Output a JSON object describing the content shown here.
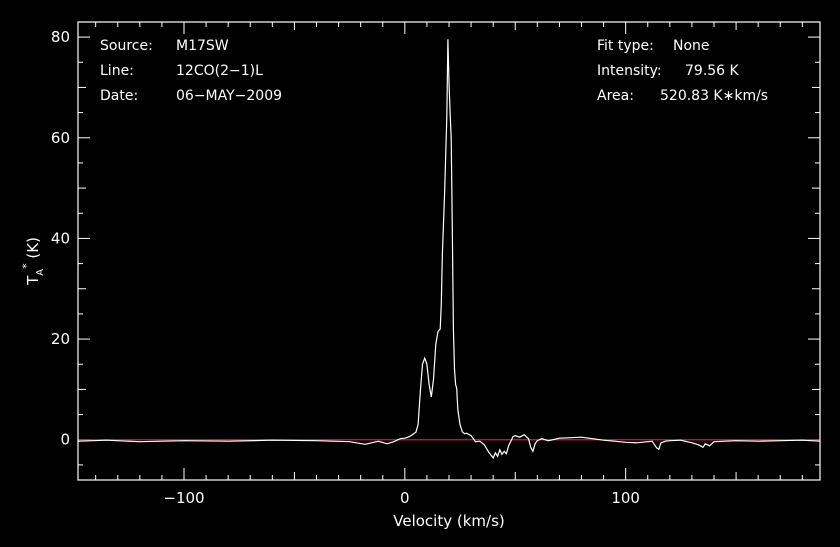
{
  "chart_data": {
    "type": "line",
    "xlabel": "Velocity (km/s)",
    "ylabel": {
      "main": "T",
      "sub": "A",
      "sup": "*",
      "unit": " (K)"
    },
    "xlim": [
      -148,
      188
    ],
    "ylim": [
      -8,
      83
    ],
    "xticks": [
      -100,
      0,
      100
    ],
    "yticks": [
      0,
      20,
      40,
      60,
      80
    ],
    "baseline": {
      "y": 0,
      "color": "#cc2222"
    },
    "line_color": "#ffffff",
    "info_left": [
      {
        "key": "Source:",
        "value": "M17SW"
      },
      {
        "key": "Line:",
        "value": "12CO(2−1)L"
      },
      {
        "key": "Date:",
        "value": "06−MAY−2009"
      }
    ],
    "info_right": [
      {
        "key": "Fit type:",
        "value": "None"
      },
      {
        "key": "Intensity:",
        "value": "79.56 K"
      },
      {
        "key": "Area:",
        "value": "520.83 K∗km/s"
      }
    ],
    "series": [
      {
        "x": [
          -148,
          -135,
          -120,
          -100,
          -80,
          -60,
          -40,
          -25,
          -18,
          -15,
          -12,
          -8,
          -5,
          -2,
          0,
          2,
          4,
          5,
          6,
          7,
          8,
          9,
          10,
          11,
          12,
          13,
          14,
          15,
          16,
          16.5,
          17,
          18,
          19,
          19.5,
          20,
          20.5,
          21,
          21.5,
          22,
          22.5,
          23,
          23.5,
          24,
          25,
          26,
          27,
          28,
          30,
          32,
          34,
          36,
          38,
          40,
          41,
          42,
          43,
          44,
          45,
          46,
          47,
          48,
          49,
          50,
          52,
          54,
          56,
          57,
          58,
          59,
          60,
          62,
          65,
          70,
          75,
          80,
          85,
          90,
          95,
          100,
          105,
          110,
          112,
          114,
          115,
          116,
          118,
          120,
          125,
          130,
          133,
          135,
          136,
          138,
          140,
          145,
          150,
          160,
          170,
          180,
          188
        ],
        "y": [
          -0.3,
          -0.1,
          -0.4,
          -0.2,
          -0.3,
          -0.1,
          -0.2,
          -0.4,
          -0.9,
          -0.6,
          -0.3,
          -0.8,
          -0.4,
          0.2,
          0.3,
          0.6,
          1.2,
          1.5,
          3.0,
          9.5,
          15.0,
          16.2,
          15.0,
          11.0,
          8.5,
          12.0,
          19.0,
          21.5,
          22.0,
          27.0,
          37.0,
          49.0,
          64.0,
          79.56,
          71.0,
          65.0,
          60.0,
          42.0,
          22.0,
          14.0,
          11.0,
          10.2,
          6.0,
          3.0,
          1.6,
          1.2,
          1.3,
          0.8,
          -0.4,
          -0.3,
          -1.0,
          -2.5,
          -3.6,
          -2.6,
          -3.3,
          -2.0,
          -2.9,
          -2.3,
          -2.8,
          -1.2,
          -0.3,
          0.6,
          0.8,
          0.5,
          1.0,
          0.2,
          -1.5,
          -2.3,
          -0.8,
          -0.2,
          0.2,
          -0.2,
          0.3,
          0.4,
          0.5,
          0.2,
          -0.1,
          -0.3,
          -0.5,
          -0.6,
          -0.4,
          -0.3,
          -1.6,
          -1.9,
          -0.6,
          -0.3,
          -0.2,
          -0.1,
          -0.6,
          -1.0,
          -1.5,
          -0.8,
          -1.2,
          -0.4,
          -0.3,
          -0.2,
          -0.3,
          -0.2,
          -0.1,
          -0.3
        ]
      }
    ]
  }
}
